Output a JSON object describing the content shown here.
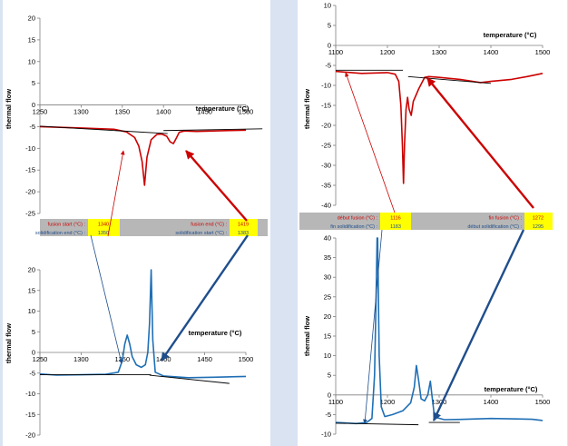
{
  "chart_data": [
    {
      "type": "line",
      "panel": "left-top",
      "xlabel": "temperature (°C)",
      "ylabel": "thermal flow",
      "xlim": [
        1250,
        1500
      ],
      "ylim": [
        -25,
        20
      ],
      "xticks": [
        1250,
        1300,
        1350,
        1400,
        1450,
        1500
      ],
      "yticks": [
        -25,
        -20,
        -15,
        -10,
        -5,
        0,
        5,
        10,
        15,
        20
      ],
      "color": "#cc0000",
      "series": [
        {
          "points": [
            [
              1250,
              -5.0
            ],
            [
              1300,
              -5.3
            ],
            [
              1340,
              -5.6
            ],
            [
              1355,
              -6.2
            ],
            [
              1365,
              -7.5
            ],
            [
              1370,
              -9.5
            ],
            [
              1374,
              -13
            ],
            [
              1377,
              -18.5
            ],
            [
              1380,
              -12
            ],
            [
              1385,
              -8
            ],
            [
              1392,
              -6.8
            ],
            [
              1398,
              -6.7
            ],
            [
              1404,
              -7.2
            ],
            [
              1408,
              -8.5
            ],
            [
              1412,
              -8.9
            ],
            [
              1416,
              -7.5
            ],
            [
              1419,
              -6.3
            ],
            [
              1425,
              -6.0
            ],
            [
              1440,
              -6.1
            ],
            [
              1460,
              -6.0
            ],
            [
              1480,
              -5.9
            ],
            [
              1500,
              -5.8
            ]
          ]
        }
      ],
      "tangents": [
        [
          [
            1250,
            -4.9
          ],
          [
            1405,
            -6.6
          ]
        ],
        [
          [
            1400,
            -5.9
          ],
          [
            1520,
            -5.5
          ]
        ]
      ]
    },
    {
      "type": "line",
      "panel": "left-bottom",
      "xlabel": "temperature (°C)",
      "ylabel": "thermal flow",
      "xlim": [
        1250,
        1500
      ],
      "ylim": [
        -20,
        20
      ],
      "xticks": [
        1250,
        1300,
        1350,
        1400,
        1450,
        1500
      ],
      "yticks": [
        -20,
        -15,
        -10,
        -5,
        0,
        5,
        10,
        15,
        20
      ],
      "color": "#1f6fb5",
      "series": [
        {
          "points": [
            [
              1250,
              -5.2
            ],
            [
              1270,
              -5.5
            ],
            [
              1300,
              -5.4
            ],
            [
              1330,
              -5.3
            ],
            [
              1345,
              -4.8
            ],
            [
              1350,
              -2.0
            ],
            [
              1353,
              2.0
            ],
            [
              1356,
              4.2
            ],
            [
              1359,
              2.0
            ],
            [
              1362,
              -1.0
            ],
            [
              1367,
              -3.0
            ],
            [
              1373,
              -3.6
            ],
            [
              1378,
              -3.0
            ],
            [
              1381,
              0
            ],
            [
              1383,
              7
            ],
            [
              1385,
              20
            ],
            [
              1387,
              3
            ],
            [
              1390,
              -4.8
            ],
            [
              1400,
              -5.7
            ],
            [
              1430,
              -6.1
            ],
            [
              1460,
              -6.0
            ],
            [
              1500,
              -5.8
            ]
          ]
        }
      ],
      "tangents": [
        [
          [
            1250,
            -5.4
          ],
          [
            1385,
            -5.4
          ]
        ],
        [
          [
            1383,
            -5.5
          ],
          [
            1480,
            -7.5
          ]
        ]
      ]
    },
    {
      "type": "line",
      "panel": "right-top",
      "xlabel": "temperature (°C)",
      "ylabel": "thermal flow",
      "xlim": [
        1100,
        1500
      ],
      "ylim": [
        -40,
        10
      ],
      "xticks": [
        1100,
        1200,
        1300,
        1400,
        1500
      ],
      "yticks": [
        -40,
        -35,
        -30,
        -25,
        -20,
        -15,
        -10,
        -5,
        0,
        5,
        10
      ],
      "color": "#cc0000",
      "series": [
        {
          "points": [
            [
              1100,
              -6.5
            ],
            [
              1150,
              -7.0
            ],
            [
              1200,
              -6.8
            ],
            [
              1215,
              -7.2
            ],
            [
              1222,
              -9
            ],
            [
              1226,
              -15
            ],
            [
              1229,
              -25
            ],
            [
              1231,
              -34.5
            ],
            [
              1233,
              -25
            ],
            [
              1236,
              -16
            ],
            [
              1239,
              -13
            ],
            [
              1242,
              -16
            ],
            [
              1246,
              -17.5
            ],
            [
              1250,
              -14
            ],
            [
              1255,
              -12.5
            ],
            [
              1260,
              -11
            ],
            [
              1266,
              -9.5
            ],
            [
              1272,
              -8
            ],
            [
              1280,
              -7.8
            ],
            [
              1300,
              -8.0
            ],
            [
              1340,
              -8.5
            ],
            [
              1380,
              -9.3
            ],
            [
              1400,
              -9.0
            ],
            [
              1440,
              -8.5
            ],
            [
              1470,
              -7.8
            ],
            [
              1500,
              -7.0
            ]
          ]
        }
      ],
      "tangents": [
        [
          [
            1100,
            -6.2
          ],
          [
            1230,
            -6.2
          ]
        ],
        [
          [
            1240,
            -7.8
          ],
          [
            1400,
            -9.5
          ]
        ]
      ]
    },
    {
      "type": "line",
      "panel": "right-bottom",
      "xlabel": "temperature (°C)",
      "ylabel": "thermal flow",
      "xlim": [
        1100,
        1500
      ],
      "ylim": [
        -10,
        40
      ],
      "xticks": [
        1100,
        1200,
        1300,
        1400,
        1500
      ],
      "yticks": [
        -10,
        -5,
        0,
        5,
        10,
        15,
        20,
        25,
        30,
        35,
        40
      ],
      "color": "#1f6fb5",
      "series": [
        {
          "points": [
            [
              1100,
              -7.0
            ],
            [
              1140,
              -7.3
            ],
            [
              1160,
              -7.0
            ],
            [
              1170,
              -6.0
            ],
            [
              1175,
              5
            ],
            [
              1178,
              25
            ],
            [
              1180,
              40
            ],
            [
              1181,
              40
            ],
            [
              1184,
              10
            ],
            [
              1188,
              -3
            ],
            [
              1195,
              -5.5
            ],
            [
              1210,
              -5.0
            ],
            [
              1230,
              -4.0
            ],
            [
              1245,
              -2.0
            ],
            [
              1252,
              2
            ],
            [
              1256,
              7.5
            ],
            [
              1260,
              4
            ],
            [
              1265,
              -1
            ],
            [
              1272,
              -1.5
            ],
            [
              1278,
              0
            ],
            [
              1283,
              3.5
            ],
            [
              1286,
              0
            ],
            [
              1290,
              -4.5
            ],
            [
              1296,
              -5.8
            ],
            [
              1310,
              -6.3
            ],
            [
              1350,
              -6.2
            ],
            [
              1400,
              -6.0
            ],
            [
              1450,
              -6.1
            ],
            [
              1480,
              -6.2
            ],
            [
              1500,
              -6.5
            ]
          ]
        }
      ],
      "tangents": [
        [
          [
            1100,
            -7.2
          ],
          [
            1260,
            -7.6
          ]
        ],
        [
          [
            1280,
            -7.0
          ],
          [
            1340,
            -7.0
          ]
        ]
      ]
    }
  ],
  "bands": {
    "left": {
      "row1_left_label": "fusion start (°C) :",
      "row1_left_value": "1340",
      "row1_right_label": "fusion end (°C) :",
      "row1_right_value": "1419",
      "row2_left_label": "solidification end (°C) :",
      "row2_left_value": "1350",
      "row2_right_label": "solidification start (°C) :",
      "row2_right_value": "1383"
    },
    "right": {
      "row1_left_label": "début fusion (°C) :",
      "row1_left_value": "1116",
      "row1_right_label": "fin fusion (°C) :",
      "row1_right_value": "1272",
      "row2_left_label": "fin solidification (°C) :",
      "row2_left_value": "1183",
      "row2_right_label": "début solidification (°C) :",
      "row2_right_value": "1295"
    }
  },
  "colors": {
    "fusion_red": "#cc0000",
    "solidification_blue": "#1f4e8c",
    "curve_blue": "#1f6fb5",
    "band_gray": "#b7b7b7",
    "value_yellow": "#ffff00"
  }
}
